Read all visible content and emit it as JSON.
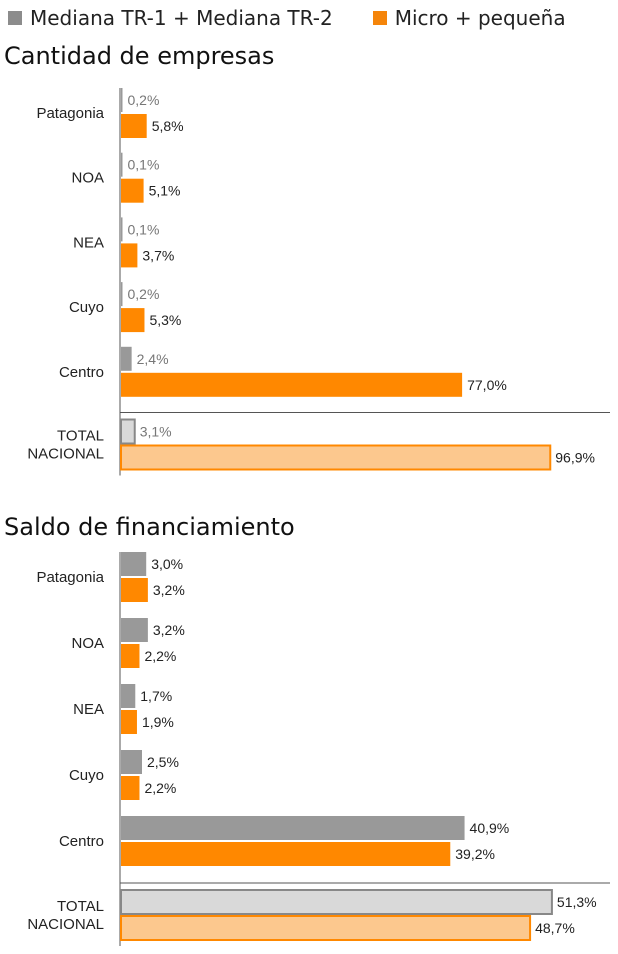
{
  "legend": [
    {
      "label": "Mediana TR-1 + Mediana TR-2",
      "color": "#8c8c8c"
    },
    {
      "label": "Micro + pequeña",
      "color": "#f5850a"
    }
  ],
  "colors": {
    "grey": "#999999",
    "orange": "#ff8800",
    "grey_light": "#d9d9d9",
    "orange_light": "#fcc88e",
    "axis": "#555555"
  },
  "chart_data": [
    {
      "type": "bar",
      "orientation": "horizontal",
      "title": "Cantidad de empresas",
      "categories": [
        "Patagonia",
        "NOA",
        "NEA",
        "Cuyo",
        "Centro",
        "TOTAL NACIONAL"
      ],
      "category_lines": [
        [
          "Patagonia"
        ],
        [
          "NOA"
        ],
        [
          "NEA"
        ],
        [
          "Cuyo"
        ],
        [
          "Centro"
        ],
        [
          "TOTAL",
          "NACIONAL"
        ]
      ],
      "series": [
        {
          "name": "Mediana TR-1 + Mediana TR-2",
          "values": [
            0.2,
            0.1,
            0.1,
            0.2,
            2.4,
            3.1
          ],
          "labels": [
            "0,2%",
            "0,1%",
            "0,1%",
            "0,2%",
            "2,4%",
            "3,1%"
          ]
        },
        {
          "name": "Micro + pequeña",
          "values": [
            5.8,
            5.1,
            3.7,
            5.3,
            77.0,
            96.9
          ],
          "labels": [
            "5,8%",
            "5,1%",
            "3,7%",
            "5,3%",
            "77,0%",
            "96,9%"
          ]
        }
      ],
      "xlim": [
        0,
        100
      ],
      "unit": "%"
    },
    {
      "type": "bar",
      "orientation": "horizontal",
      "title": "Saldo de financiamiento",
      "categories": [
        "Patagonia",
        "NOA",
        "NEA",
        "Cuyo",
        "Centro",
        "TOTAL NACIONAL"
      ],
      "category_lines": [
        [
          "Patagonia"
        ],
        [
          "NOA"
        ],
        [
          "NEA"
        ],
        [
          "Cuyo"
        ],
        [
          "Centro"
        ],
        [
          "TOTAL",
          "NACIONAL"
        ]
      ],
      "series": [
        {
          "name": "Mediana TR-1 + Mediana TR-2",
          "values": [
            3.0,
            3.2,
            1.7,
            2.5,
            40.9,
            51.3
          ],
          "labels": [
            "3,0%",
            "3,2%",
            "1,7%",
            "2,5%",
            "40,9%",
            "51,3%"
          ]
        },
        {
          "name": "Micro + pequeña",
          "values": [
            3.2,
            2.2,
            1.9,
            2.2,
            39.2,
            48.7
          ],
          "labels": [
            "3,2%",
            "2,2%",
            "1,9%",
            "2,2%",
            "39,2%",
            "48,7%"
          ]
        }
      ],
      "xlim": [
        0,
        55
      ],
      "unit": "%"
    }
  ]
}
